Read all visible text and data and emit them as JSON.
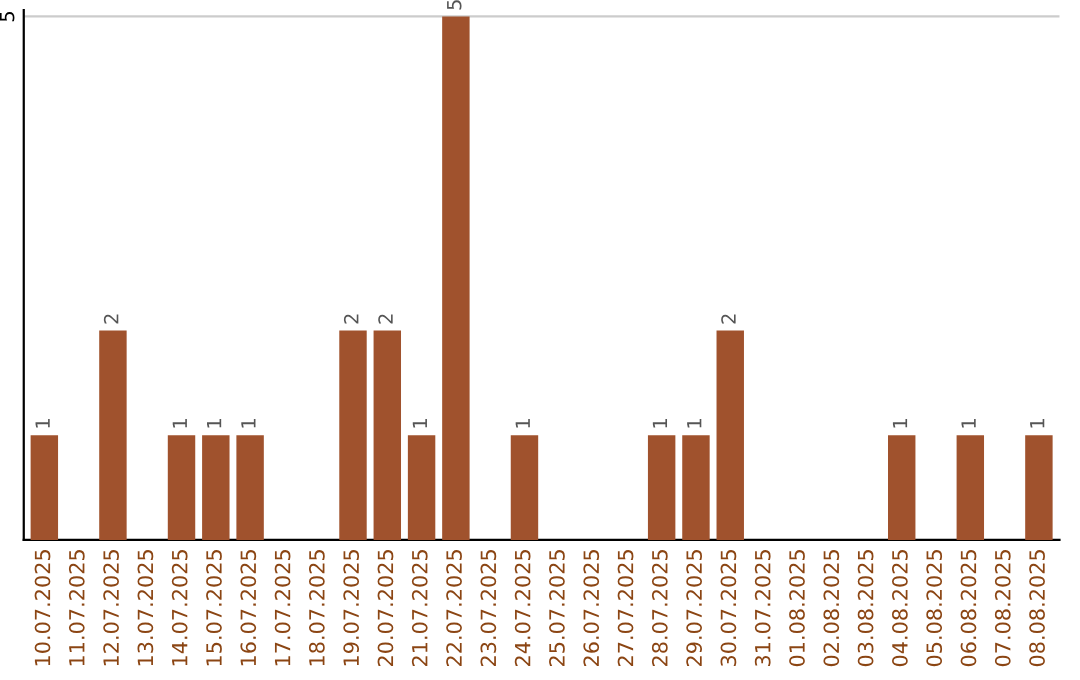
{
  "chart_data": {
    "type": "bar",
    "categories": [
      "10.07.2025",
      "11.07.2025",
      "12.07.2025",
      "13.07.2025",
      "14.07.2025",
      "15.07.2025",
      "16.07.2025",
      "17.07.2025",
      "18.07.2025",
      "19.07.2025",
      "20.07.2025",
      "21.07.2025",
      "22.07.2025",
      "23.07.2025",
      "24.07.2025",
      "25.07.2025",
      "26.07.2025",
      "27.07.2025",
      "28.07.2025",
      "29.07.2025",
      "30.07.2025",
      "31.07.2025",
      "01.08.2025",
      "02.08.2025",
      "03.08.2025",
      "04.08.2025",
      "05.08.2025",
      "06.08.2025",
      "07.08.2025",
      "08.08.2025"
    ],
    "values": [
      1,
      0,
      2,
      0,
      1,
      1,
      1,
      0,
      0,
      2,
      2,
      1,
      5,
      0,
      1,
      0,
      0,
      0,
      1,
      1,
      2,
      0,
      0,
      0,
      0,
      1,
      0,
      1,
      0,
      1
    ],
    "value_labels": [
      "1",
      null,
      "2",
      null,
      "1",
      "1",
      "1",
      null,
      null,
      "2",
      "2",
      "1",
      "5",
      null,
      "1",
      null,
      null,
      null,
      "1",
      "1",
      "2",
      null,
      null,
      null,
      null,
      "1",
      null,
      "1",
      null,
      "1"
    ],
    "color": "#a0522d",
    "ylim": [
      0,
      5.06
    ],
    "yticks": [
      5
    ],
    "grid": "y"
  }
}
